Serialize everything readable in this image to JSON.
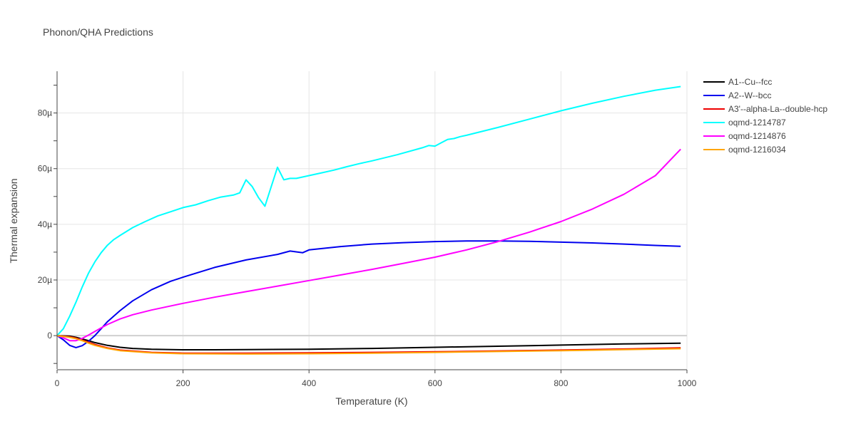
{
  "chart_data": {
    "type": "line",
    "title": "Phonon/QHA Predictions",
    "xlabel": "Temperature (K)",
    "ylabel": "Thermal expansion",
    "xlim": [
      0,
      1000
    ],
    "ylim": [
      -1.2e-05,
      9.5e-05
    ],
    "x_ticks": [
      0,
      200,
      400,
      600,
      800,
      1000
    ],
    "x_tick_labels": [
      "0",
      "200",
      "400",
      "600",
      "800",
      "1000"
    ],
    "y_ticks": [
      0,
      2e-05,
      4e-05,
      6e-05,
      8e-05
    ],
    "y_tick_labels": [
      "0",
      "20µ",
      "40µ",
      "60µ",
      "80µ"
    ],
    "grid": true,
    "legend_position": "right",
    "series": [
      {
        "name": "A1--Cu--fcc",
        "color": "#000000",
        "x": [
          0,
          10,
          20,
          30,
          40,
          50,
          60,
          80,
          100,
          120,
          150,
          200,
          250,
          300,
          400,
          500,
          600,
          700,
          800,
          900,
          990
        ],
        "y": [
          0,
          -1e-07,
          -2e-07,
          -6e-07,
          -1.2e-06,
          -1.8e-06,
          -2.5e-06,
          -3.5e-06,
          -4.2e-06,
          -4.6e-06,
          -4.9e-06,
          -5.1e-06,
          -5.1e-06,
          -5e-06,
          -4.9e-06,
          -4.6e-06,
          -4.2e-06,
          -3.8e-06,
          -3.4e-06,
          -3e-06,
          -2.7e-06
        ]
      },
      {
        "name": "A2--W--bcc",
        "color": "#0000ee",
        "x": [
          0,
          10,
          20,
          30,
          40,
          50,
          60,
          70,
          80,
          100,
          120,
          150,
          180,
          200,
          250,
          300,
          350,
          370,
          390,
          400,
          450,
          500,
          550,
          600,
          650,
          700,
          750,
          800,
          850,
          900,
          950,
          990
        ],
        "y": [
          0,
          -1.5e-06,
          -3.5e-06,
          -4.3e-06,
          -3.6e-06,
          -2e-06,
          0,
          2.5e-06,
          5e-06,
          9e-06,
          1.25e-05,
          1.65e-05,
          1.95e-05,
          2.1e-05,
          2.45e-05,
          2.72e-05,
          2.92e-05,
          3.04e-05,
          2.98e-05,
          3.08e-05,
          3.2e-05,
          3.29e-05,
          3.34e-05,
          3.38e-05,
          3.4e-05,
          3.4e-05,
          3.39e-05,
          3.36e-05,
          3.33e-05,
          3.29e-05,
          3.24e-05,
          3.21e-05
        ]
      },
      {
        "name": "A3'--alpha-La--double-hcp",
        "color": "#ee0000",
        "x": [
          0,
          10,
          20,
          30,
          40,
          50,
          60,
          80,
          100,
          150,
          200,
          300,
          400,
          500,
          600,
          700,
          800,
          900,
          990
        ],
        "y": [
          0,
          -2e-07,
          -4e-07,
          -9e-07,
          -1.6e-06,
          -2.4e-06,
          -3.2e-06,
          -4.4e-06,
          -5.2e-06,
          -6e-06,
          -6.3e-06,
          -6.3e-06,
          -6.2e-06,
          -6e-06,
          -5.8e-06,
          -5.5e-06,
          -5.2e-06,
          -4.8e-06,
          -4.4e-06
        ]
      },
      {
        "name": "oqmd-1214787",
        "color": "#00ffff",
        "x": [
          0,
          10,
          20,
          30,
          40,
          50,
          60,
          70,
          80,
          90,
          100,
          120,
          140,
          160,
          180,
          200,
          220,
          240,
          260,
          280,
          290,
          300,
          310,
          320,
          330,
          340,
          350,
          360,
          370,
          380,
          400,
          420,
          440,
          460,
          480,
          500,
          540,
          580,
          590,
          600,
          610,
          620,
          630,
          640,
          650,
          700,
          750,
          800,
          850,
          900,
          950,
          990
        ],
        "y": [
          0,
          2.5e-06,
          7e-06,
          1.2e-05,
          1.75e-05,
          2.25e-05,
          2.65e-05,
          2.98e-05,
          3.25e-05,
          3.45e-05,
          3.6e-05,
          3.88e-05,
          4.1e-05,
          4.3e-05,
          4.45e-05,
          4.6e-05,
          4.7e-05,
          4.85e-05,
          4.98e-05,
          5.05e-05,
          5.13e-05,
          5.6e-05,
          5.35e-05,
          4.95e-05,
          4.65e-05,
          5.35e-05,
          6.05e-05,
          5.6e-05,
          5.65e-05,
          5.65e-05,
          5.75e-05,
          5.85e-05,
          5.95e-05,
          6.07e-05,
          6.18e-05,
          6.28e-05,
          6.5e-05,
          6.75e-05,
          6.83e-05,
          6.81e-05,
          6.93e-05,
          7.05e-05,
          7.08e-05,
          7.15e-05,
          7.2e-05,
          7.48e-05,
          7.78e-05,
          8.08e-05,
          8.35e-05,
          8.6e-05,
          8.82e-05,
          8.95e-05
        ]
      },
      {
        "name": "oqmd-1214876",
        "color": "#ff00ff",
        "x": [
          0,
          10,
          20,
          30,
          40,
          50,
          60,
          70,
          80,
          100,
          120,
          150,
          200,
          250,
          300,
          350,
          400,
          450,
          500,
          550,
          600,
          650,
          700,
          750,
          800,
          850,
          900,
          950,
          990
        ],
        "y": [
          0,
          -8e-07,
          -1.8e-06,
          -1.8e-06,
          -1e-06,
          2e-07,
          1.5e-06,
          2.8e-06,
          4e-06,
          6e-06,
          7.5e-06,
          9.2e-06,
          1.16e-05,
          1.38e-05,
          1.58e-05,
          1.78e-05,
          1.98e-05,
          2.18e-05,
          2.38e-05,
          2.6e-05,
          2.82e-05,
          3.08e-05,
          3.38e-05,
          3.72e-05,
          4.1e-05,
          4.55e-05,
          5.08e-05,
          5.75e-05,
          6.7e-05
        ]
      },
      {
        "name": "oqmd-1216034",
        "color": "#ffa500",
        "x": [
          0,
          10,
          20,
          30,
          40,
          50,
          60,
          80,
          100,
          150,
          200,
          300,
          400,
          500,
          600,
          700,
          800,
          900,
          990
        ],
        "y": [
          0,
          -3e-07,
          -6e-07,
          -1.1e-06,
          -1.8e-06,
          -2.7e-06,
          -3.5e-06,
          -4.6e-06,
          -5.4e-06,
          -6.2e-06,
          -6.5e-06,
          -6.6e-06,
          -6.5e-06,
          -6.3e-06,
          -6e-06,
          -5.7e-06,
          -5.4e-06,
          -5e-06,
          -4.7e-06
        ]
      }
    ]
  }
}
